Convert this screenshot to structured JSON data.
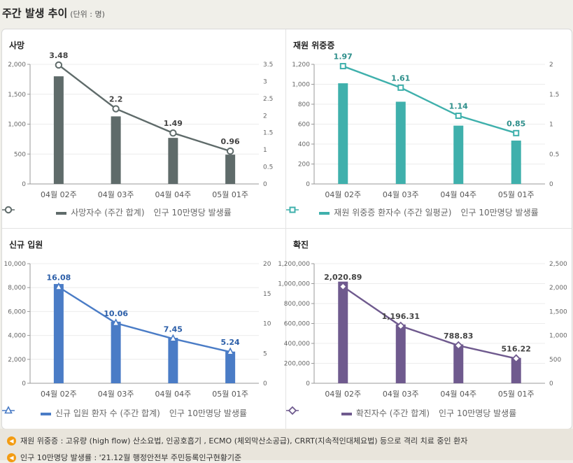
{
  "header": {
    "title": "주간 발생 추이",
    "unit": "(단위 : 명)"
  },
  "chart_data": [
    {
      "type": "bar+line",
      "title": "사망",
      "categories": [
        "04월 02주",
        "04월 03주",
        "04월 04주",
        "05월 01주"
      ],
      "bar_series": {
        "name": "사망자수 (주간 합계)",
        "values": [
          1800,
          1130,
          770,
          490
        ],
        "color": "#5f6b6a"
      },
      "line_series": {
        "name": "인구 10만명당 발생률",
        "values": [
          3.48,
          2.2,
          1.49,
          0.96
        ],
        "labels": [
          "3.48",
          "2.2",
          "1.49",
          "0.96"
        ],
        "color": "#5f6b6a",
        "label_color": "#444444",
        "marker": "circle"
      },
      "y_left": {
        "min": 0,
        "max": 2000,
        "ticks": [
          "0",
          "500",
          "1,000",
          "1,500",
          "2,000"
        ]
      },
      "y_right": {
        "min": 0,
        "max": 3.5,
        "ticks": [
          "0",
          "0.5",
          "1",
          "1.5",
          "2",
          "2.5",
          "3",
          "3.5"
        ]
      }
    },
    {
      "type": "bar+line",
      "title": "재원 위중증",
      "categories": [
        "04월 02주",
        "04월 03주",
        "04월 04주",
        "05월 01주"
      ],
      "bar_series": {
        "name": "재원 위중증 환자수 (주간 일평균)",
        "values": [
          1010,
          825,
          585,
          435
        ],
        "color": "#3fb0ac"
      },
      "line_series": {
        "name": "인구 10만명당 발생률",
        "values": [
          1.97,
          1.61,
          1.14,
          0.85
        ],
        "labels": [
          "1.97",
          "1.61",
          "1.14",
          "0.85"
        ],
        "color": "#3fb0ac",
        "label_color": "#2e8f8b",
        "marker": "square"
      },
      "y_left": {
        "min": 0,
        "max": 1200,
        "ticks": [
          "0",
          "200",
          "400",
          "600",
          "800",
          "1,000",
          "1,200"
        ]
      },
      "y_right": {
        "min": 0,
        "max": 2,
        "ticks": [
          "0",
          "0.5",
          "1",
          "1.5",
          "2"
        ]
      }
    },
    {
      "type": "bar+line",
      "title": "신규 입원",
      "categories": [
        "04월 02주",
        "04월 03주",
        "04월 04주",
        "05월 01주"
      ],
      "bar_series": {
        "name": "신규 입원 환자 수 (주간 합계)",
        "values": [
          8300,
          5150,
          3800,
          2650
        ],
        "color": "#4a7cc6"
      },
      "line_series": {
        "name": "인구 10만명당 발생률",
        "values": [
          16.08,
          10.06,
          7.45,
          5.24
        ],
        "labels": [
          "16.08",
          "10.06",
          "7.45",
          "5.24"
        ],
        "color": "#4a7cc6",
        "label_color": "#2b5ea8",
        "marker": "triangle"
      },
      "y_left": {
        "min": 0,
        "max": 10000,
        "ticks": [
          "0",
          "2,000",
          "4,000",
          "6,000",
          "8,000",
          "10,000"
        ]
      },
      "y_right": {
        "min": 0,
        "max": 20,
        "ticks": [
          "0",
          "5",
          "10",
          "15",
          "20"
        ]
      }
    },
    {
      "type": "bar+line",
      "title": "확진",
      "categories": [
        "04월 02주",
        "04월 03주",
        "04월 04주",
        "05월 01주"
      ],
      "bar_series": {
        "name": "확진자수 (주간 합계)",
        "values": [
          1020000,
          590000,
          390000,
          255000
        ],
        "color": "#6f5a8e"
      },
      "line_series": {
        "name": "인구 10만명당 발생률",
        "values": [
          2020.89,
          1196.31,
          788.83,
          516.22
        ],
        "labels": [
          "2,020.89",
          "1,196.31",
          "788.83",
          "516.22"
        ],
        "color": "#6f5a8e",
        "label_color": "#444444",
        "marker": "diamond"
      },
      "y_left": {
        "min": 0,
        "max": 1200000,
        "ticks": [
          "0",
          "200,000",
          "400,000",
          "600,000",
          "800,000",
          "1,000,000",
          "1,200,000"
        ]
      },
      "y_right": {
        "min": 0,
        "max": 2500,
        "ticks": [
          "0",
          "500",
          "1,000",
          "1,500",
          "2,000",
          "2,500"
        ]
      }
    }
  ],
  "notes": [
    "재원 위중증 : 고유량 (high flow) 산소요법, 인공호흡기 , ECMO (체외막산소공급), CRRT(지속적인대체요법) 등으로 격리 치료 중인 환자",
    "인구 10만명당 발생률 : '21.12월 행정안전부 주민등록인구현황기준"
  ],
  "note_icon": "speaker-icon"
}
